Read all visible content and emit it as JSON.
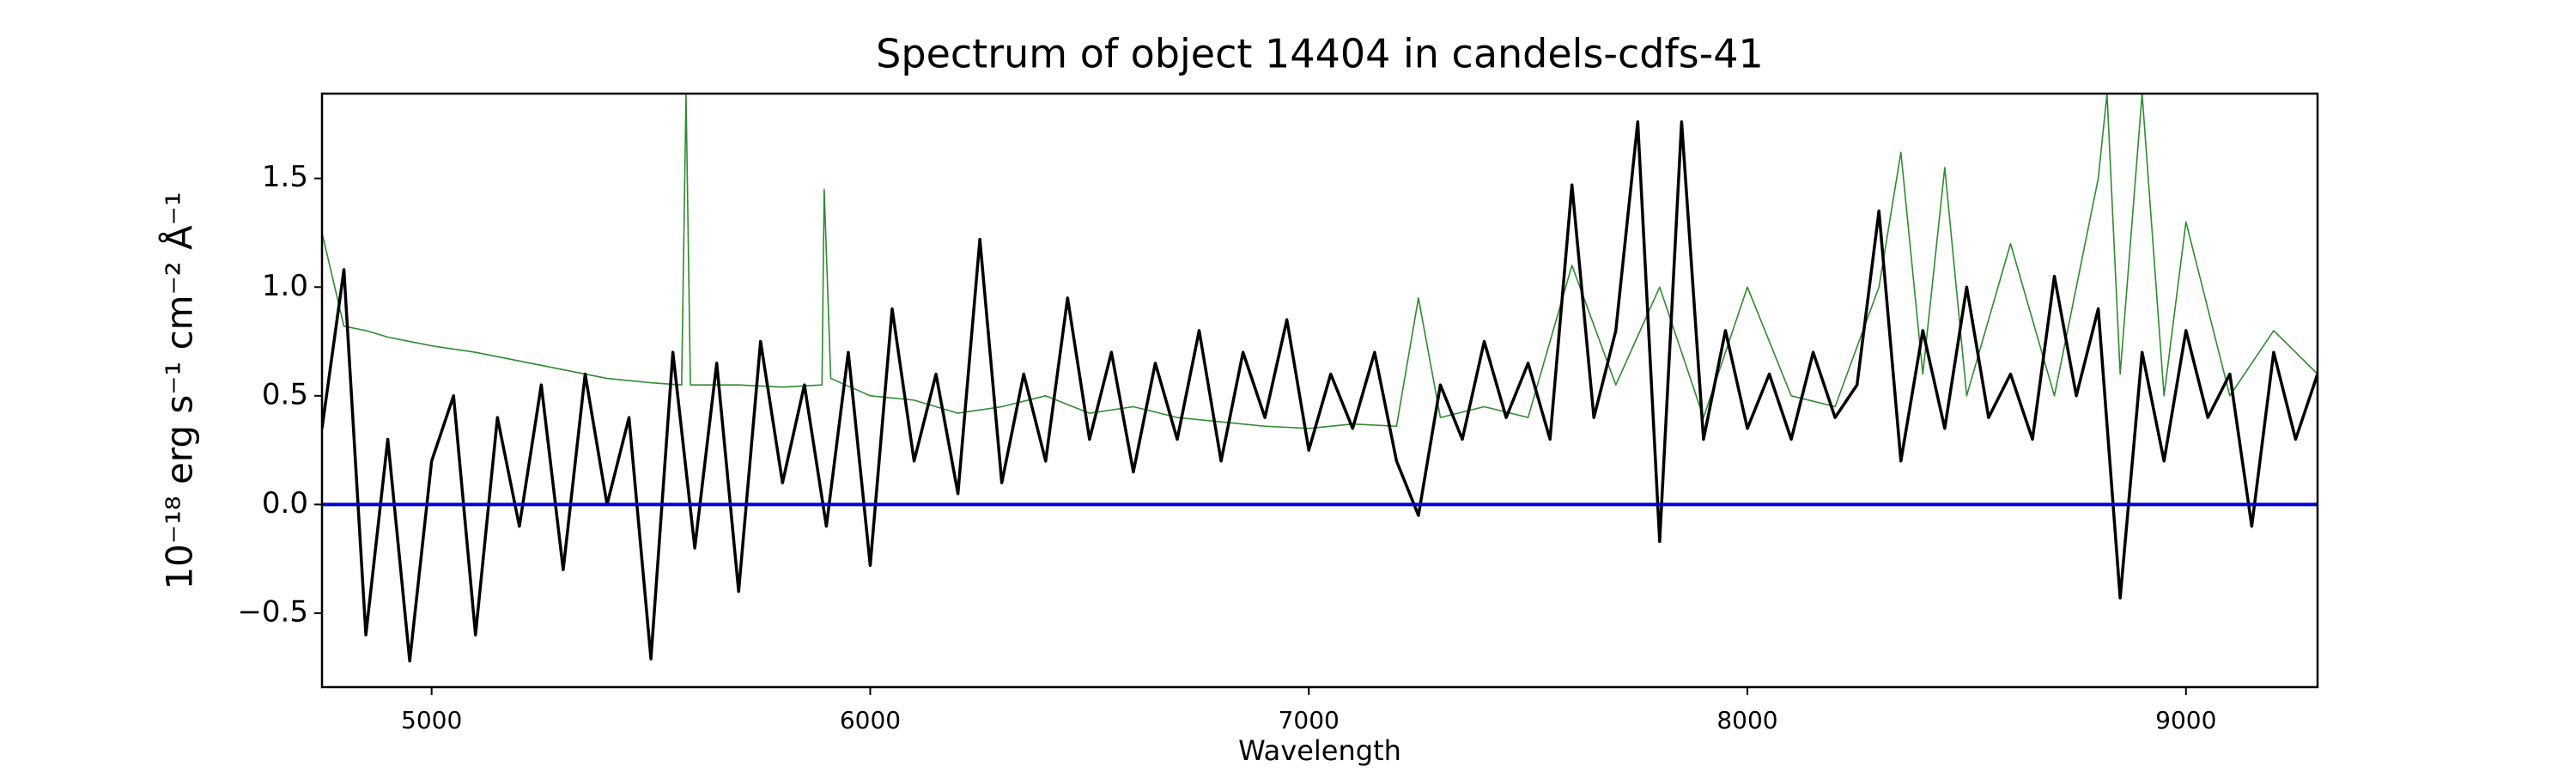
{
  "chart_data": {
    "type": "line",
    "title": "Spectrum of object 14404 in candels-cdfs-41",
    "xlabel": "Wavelength",
    "ylabel": "10⁻¹⁸ erg s⁻¹ cm⁻² Å⁻¹",
    "xlim": [
      4750,
      9300
    ],
    "ylim": [
      -0.84,
      1.89
    ],
    "xticks": [
      5000,
      6000,
      7000,
      8000,
      9000
    ],
    "yticks": [
      {
        "value": -0.5,
        "label": "−0.5"
      },
      {
        "value": 0,
        "label": "0.0"
      },
      {
        "value": 0.5,
        "label": "0.5"
      },
      {
        "value": 1,
        "label": "1.0"
      },
      {
        "value": 1.5,
        "label": "1.5"
      }
    ],
    "series": [
      {
        "color": "#2e8b2e",
        "width": 1.6,
        "x": [
          4750,
          4800,
          4850,
          4900,
          4950,
          5000,
          5100,
          5200,
          5300,
          5400,
          5500,
          5570,
          5580,
          5590,
          5700,
          5800,
          5890,
          5895,
          5910,
          6000,
          6100,
          6200,
          6300,
          6400,
          6500,
          6600,
          6700,
          6800,
          6900,
          7000,
          7100,
          7200,
          7250,
          7300,
          7400,
          7500,
          7600,
          7700,
          7800,
          7900,
          8000,
          8100,
          8200,
          8300,
          8350,
          8400,
          8450,
          8500,
          8600,
          8700,
          8800,
          8820,
          8850,
          8900,
          8950,
          9000,
          9100,
          9200,
          9300
        ],
        "values": [
          1.25,
          0.82,
          0.8,
          0.77,
          0.75,
          0.73,
          0.7,
          0.66,
          0.62,
          0.58,
          0.56,
          0.55,
          1.89,
          0.55,
          0.55,
          0.54,
          0.55,
          1.45,
          0.58,
          0.5,
          0.48,
          0.42,
          0.45,
          0.5,
          0.42,
          0.45,
          0.4,
          0.38,
          0.36,
          0.35,
          0.37,
          0.36,
          0.95,
          0.4,
          0.45,
          0.4,
          1.1,
          0.55,
          1.0,
          0.4,
          1.0,
          0.5,
          0.45,
          1.0,
          1.62,
          0.6,
          1.55,
          0.5,
          1.2,
          0.5,
          1.5,
          1.89,
          0.6,
          1.89,
          0.5,
          1.3,
          0.5,
          0.8,
          0.6
        ]
      },
      {
        "color": "#000000",
        "width": 3.5,
        "x": [
          4750,
          4800,
          4850,
          4900,
          4950,
          5000,
          5050,
          5100,
          5150,
          5200,
          5250,
          5300,
          5350,
          5400,
          5450,
          5500,
          5550,
          5600,
          5650,
          5700,
          5750,
          5800,
          5850,
          5900,
          5950,
          6000,
          6050,
          6100,
          6150,
          6200,
          6250,
          6300,
          6350,
          6400,
          6450,
          6500,
          6550,
          6600,
          6650,
          6700,
          6750,
          6800,
          6850,
          6900,
          6950,
          7000,
          7050,
          7100,
          7150,
          7200,
          7250,
          7300,
          7350,
          7400,
          7450,
          7500,
          7550,
          7600,
          7650,
          7700,
          7750,
          7800,
          7850,
          7900,
          7950,
          8000,
          8050,
          8100,
          8150,
          8200,
          8250,
          8300,
          8350,
          8400,
          8450,
          8500,
          8550,
          8600,
          8650,
          8700,
          8750,
          8800,
          8850,
          8900,
          8950,
          9000,
          9050,
          9100,
          9150,
          9200,
          9250,
          9300
        ],
        "values": [
          0.35,
          1.08,
          -0.6,
          0.3,
          -0.72,
          0.2,
          0.5,
          -0.6,
          0.4,
          -0.1,
          0.55,
          -0.3,
          0.6,
          0.0,
          0.4,
          -0.71,
          0.7,
          -0.2,
          0.65,
          -0.4,
          0.75,
          0.1,
          0.55,
          -0.1,
          0.7,
          -0.28,
          0.9,
          0.2,
          0.6,
          0.05,
          1.22,
          0.1,
          0.6,
          0.2,
          0.95,
          0.3,
          0.7,
          0.15,
          0.65,
          0.3,
          0.8,
          0.2,
          0.7,
          0.4,
          0.85,
          0.25,
          0.6,
          0.35,
          0.7,
          0.2,
          -0.05,
          0.55,
          0.3,
          0.75,
          0.4,
          0.65,
          0.3,
          1.47,
          0.4,
          0.8,
          1.76,
          -0.17,
          1.76,
          0.3,
          0.8,
          0.35,
          0.6,
          0.3,
          0.7,
          0.4,
          0.55,
          1.35,
          0.2,
          0.8,
          0.35,
          1.0,
          0.4,
          0.6,
          0.3,
          1.05,
          0.5,
          0.9,
          -0.43,
          0.7,
          0.2,
          0.8,
          0.4,
          0.6,
          -0.1,
          0.7,
          0.3,
          0.6
        ]
      },
      {
        "color": "#0000cc",
        "width": 4,
        "x": [
          4750,
          9300
        ],
        "values": [
          0,
          0
        ]
      }
    ]
  }
}
